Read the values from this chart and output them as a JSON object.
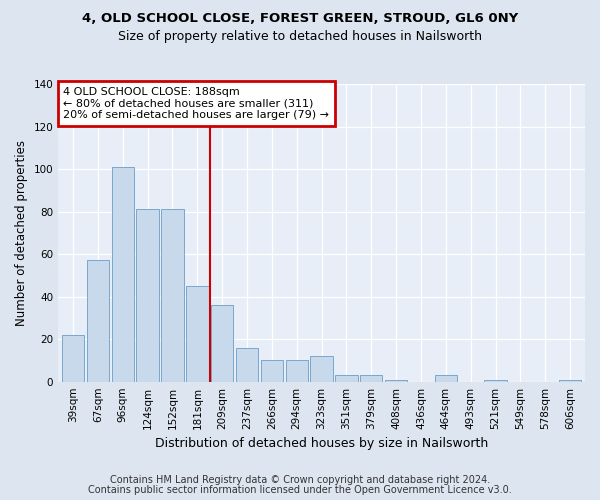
{
  "title1": "4, OLD SCHOOL CLOSE, FOREST GREEN, STROUD, GL6 0NY",
  "title2": "Size of property relative to detached houses in Nailsworth",
  "xlabel": "Distribution of detached houses by size in Nailsworth",
  "ylabel": "Number of detached properties",
  "categories": [
    "39sqm",
    "67sqm",
    "96sqm",
    "124sqm",
    "152sqm",
    "181sqm",
    "209sqm",
    "237sqm",
    "266sqm",
    "294sqm",
    "323sqm",
    "351sqm",
    "379sqm",
    "408sqm",
    "436sqm",
    "464sqm",
    "493sqm",
    "521sqm",
    "549sqm",
    "578sqm",
    "606sqm"
  ],
  "values": [
    22,
    57,
    101,
    81,
    81,
    45,
    36,
    16,
    10,
    10,
    12,
    3,
    3,
    1,
    0,
    3,
    0,
    1,
    0,
    0,
    1
  ],
  "bar_color": "#c9d9ec",
  "bar_edge_color": "#7ba7cc",
  "annotation_text": "4 OLD SCHOOL CLOSE: 188sqm\n← 80% of detached houses are smaller (311)\n20% of semi-detached houses are larger (79) →",
  "annotation_box_color": "#ffffff",
  "annotation_box_edge_color": "#cc0000",
  "vline_color": "#cc0000",
  "vline_x_index": 5,
  "footer1": "Contains HM Land Registry data © Crown copyright and database right 2024.",
  "footer2": "Contains public sector information licensed under the Open Government Licence v3.0.",
  "ylim": [
    0,
    140
  ],
  "bg_color": "#dde6f0",
  "plot_bg_color": "#e8eef7",
  "grid_color": "#ffffff",
  "title1_fontsize": 9.5,
  "title2_fontsize": 9.0,
  "ylabel_fontsize": 8.5,
  "xlabel_fontsize": 9.0,
  "tick_fontsize": 7.5,
  "annotation_fontsize": 8.0,
  "footer_fontsize": 7.0
}
